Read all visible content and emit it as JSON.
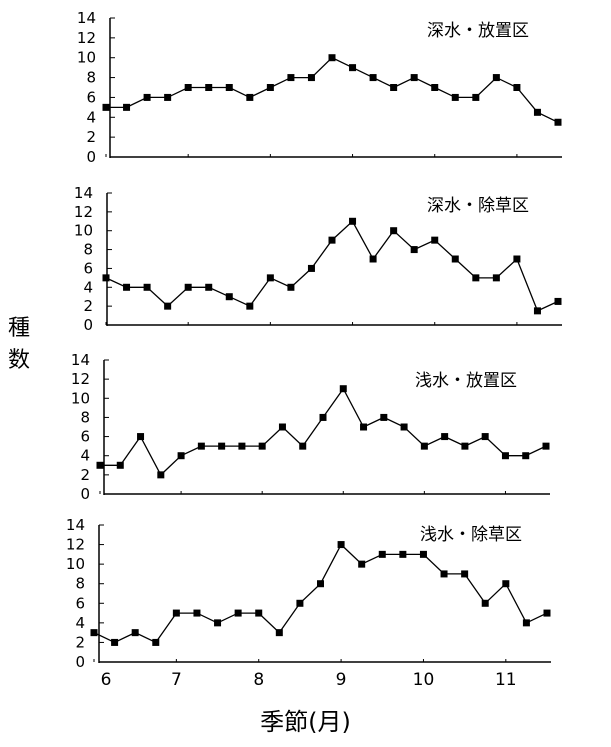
{
  "chart_data": [
    {
      "type": "line",
      "title": "深水・放置区",
      "ylim": [
        0,
        14
      ],
      "yticks": [
        "0",
        "2",
        "4",
        "6",
        "8",
        "10",
        "12",
        "14"
      ],
      "x": [
        6.0,
        6.25,
        6.5,
        6.75,
        7.0,
        7.25,
        7.5,
        7.75,
        8.0,
        8.25,
        8.5,
        8.75,
        9.0,
        9.25,
        9.5,
        9.75,
        10.0,
        10.25,
        10.5,
        10.75,
        11.0,
        11.25,
        11.5
      ],
      "values": [
        5,
        5,
        6,
        6,
        7,
        7,
        7,
        6,
        7,
        8,
        8,
        10,
        9,
        8,
        7,
        8,
        7,
        6,
        6,
        8,
        7,
        4.5,
        3.5
      ]
    },
    {
      "type": "line",
      "title": "深水・除草区",
      "ylim": [
        0,
        14
      ],
      "yticks": [
        "0",
        "2",
        "4",
        "6",
        "8",
        "10",
        "12",
        "14"
      ],
      "x": [
        6.0,
        6.25,
        6.5,
        6.75,
        7.0,
        7.25,
        7.5,
        7.75,
        8.0,
        8.25,
        8.5,
        8.75,
        9.0,
        9.25,
        9.5,
        9.75,
        10.0,
        10.25,
        10.5,
        10.75,
        11.0,
        11.25,
        11.5
      ],
      "values": [
        5,
        4,
        4,
        2,
        4,
        4,
        3,
        2,
        5,
        4,
        6,
        9,
        11,
        7,
        10,
        8,
        9,
        7,
        5,
        5,
        7,
        1.5,
        2.5
      ]
    },
    {
      "type": "line",
      "title": "浅水・放置区",
      "ylim": [
        0,
        14
      ],
      "yticks": [
        "0",
        "2",
        "4",
        "6",
        "8",
        "10",
        "12",
        "14"
      ],
      "x": [
        6.0,
        6.25,
        6.5,
        6.75,
        7.0,
        7.25,
        7.5,
        7.75,
        8.0,
        8.25,
        8.5,
        8.75,
        9.0,
        9.25,
        9.5,
        9.75,
        10.0,
        10.25,
        10.5,
        10.75,
        11.0,
        11.25,
        11.5
      ],
      "values": [
        3,
        3,
        6,
        2,
        4,
        5,
        5,
        5,
        5,
        7,
        5,
        8,
        11,
        7,
        8,
        7,
        5,
        6,
        5,
        6,
        4,
        4,
        5
      ]
    },
    {
      "type": "line",
      "title": "浅水・除草区",
      "ylim": [
        0,
        14
      ],
      "yticks": [
        "0",
        "2",
        "4",
        "6",
        "8",
        "10",
        "12",
        "14"
      ],
      "x": [
        6.0,
        6.25,
        6.5,
        6.75,
        7.0,
        7.25,
        7.5,
        7.75,
        8.0,
        8.25,
        8.5,
        8.75,
        9.0,
        9.25,
        9.5,
        9.75,
        10.0,
        10.25,
        10.5,
        10.75,
        11.0,
        11.25,
        11.5
      ],
      "values": [
        3,
        2,
        3,
        2,
        5,
        5,
        4,
        5,
        5,
        3,
        6,
        8,
        12,
        10,
        11,
        11,
        11,
        9,
        9,
        6,
        8,
        4,
        5
      ]
    }
  ],
  "xaxis": {
    "ticks": [
      "6",
      "7",
      "8",
      "9",
      "10",
      "11"
    ],
    "tick_values": [
      6,
      7,
      8,
      9,
      10,
      11
    ],
    "label": "季節(月)"
  },
  "ylabel": "種数",
  "ylabel_chars": [
    "種",
    "数"
  ],
  "colors": {
    "line": "#000000",
    "marker": "#000000",
    "axis": "#000000"
  }
}
